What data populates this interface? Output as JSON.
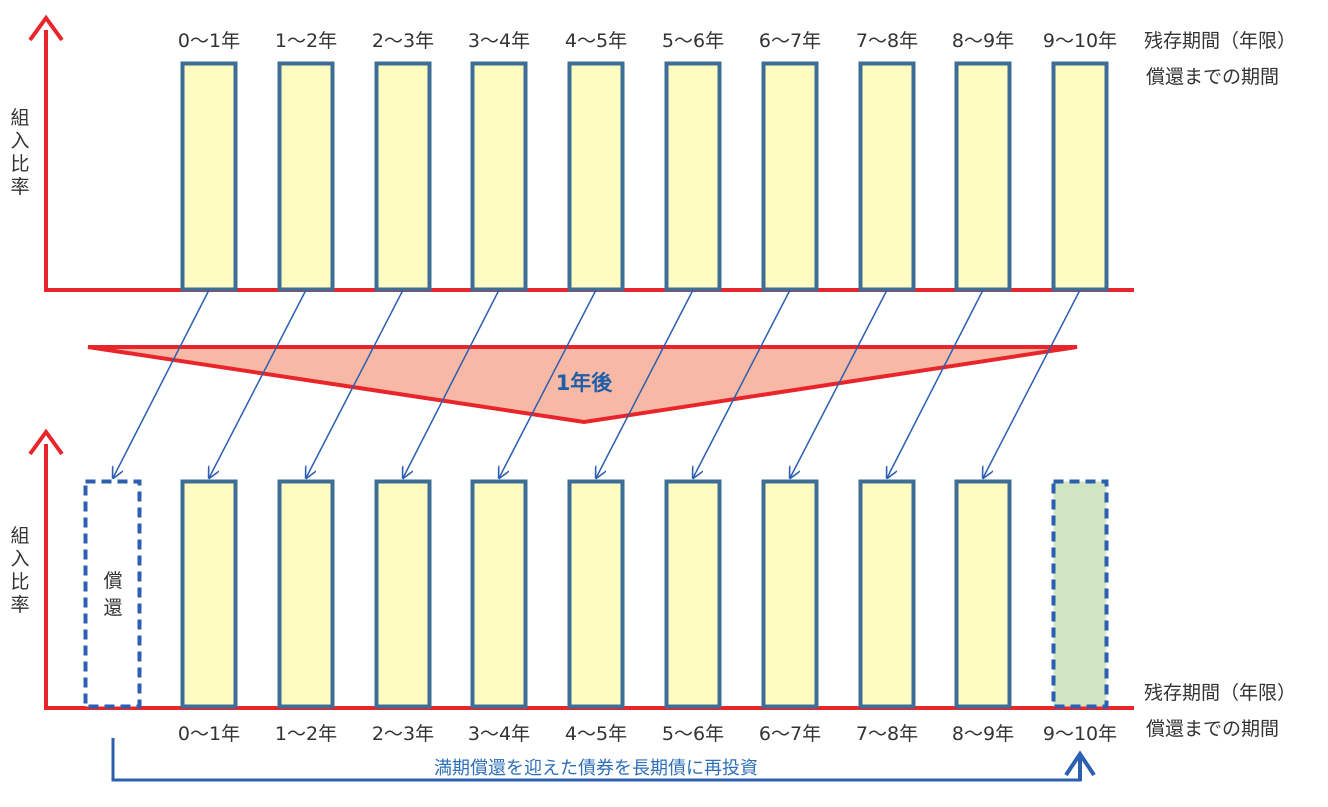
{
  "colors": {
    "axis": "#e8252b",
    "bar_fill": "#fffbc1",
    "bar_stroke": "#3d6e96",
    "new_bar_fill": "#cfe5c4",
    "dashed_stroke": "#2c5fb0",
    "arrow": "#2c5fb0",
    "triangle_fill": "#f8b8a6",
    "triangle_stroke": "#e8252b",
    "center_text": "#1f5fa8"
  },
  "top": {
    "y_label": [
      "組",
      "入",
      "比",
      "率"
    ],
    "categories": [
      "0〜1年",
      "1〜2年",
      "2〜3年",
      "3〜4年",
      "4〜5年",
      "5〜6年",
      "6〜7年",
      "7〜8年",
      "8〜9年",
      "9〜10年"
    ],
    "axis_label_line1": "残存期間（年限）",
    "axis_label_line2": "償還までの期間"
  },
  "transition_label": "1年後",
  "bottom": {
    "y_label": [
      "組",
      "入",
      "比",
      "率"
    ],
    "redeemed_label": [
      "償",
      "還"
    ],
    "categories": [
      "0〜1年",
      "1〜2年",
      "2〜3年",
      "3〜4年",
      "4〜5年",
      "5〜6年",
      "6〜7年",
      "7〜8年",
      "8〜9年",
      "9〜10年"
    ],
    "axis_label_line1": "残存期間（年限）",
    "axis_label_line2": "償還までの期間"
  },
  "reinvest_label": "満期償還を迎えた債券を長期債に再投資"
}
